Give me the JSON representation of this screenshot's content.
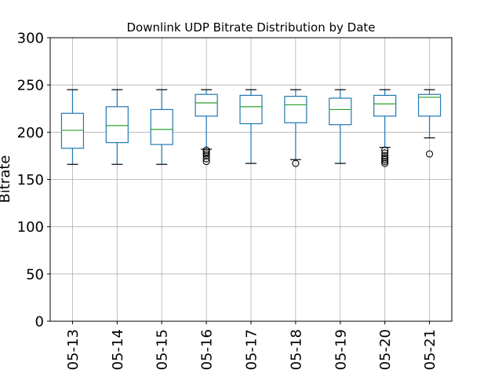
{
  "chart_data": {
    "type": "box",
    "title": "Downlink UDP Bitrate Distribution by Date",
    "xlabel": "",
    "ylabel": "Bitrate",
    "ylim": [
      0,
      300
    ],
    "yticks": [
      0,
      50,
      100,
      150,
      200,
      250,
      300
    ],
    "grid": true,
    "categories": [
      "05-13",
      "05-14",
      "05-15",
      "05-16",
      "05-17",
      "05-18",
      "05-19",
      "05-20",
      "05-21"
    ],
    "boxes": [
      {
        "min": 166,
        "q1": 183,
        "median": 202,
        "q3": 220,
        "max": 245,
        "outliers": []
      },
      {
        "min": 166,
        "q1": 189,
        "median": 207,
        "q3": 227,
        "max": 245,
        "outliers": []
      },
      {
        "min": 166,
        "q1": 187,
        "median": 203,
        "q3": 224,
        "max": 245,
        "outliers": []
      },
      {
        "min": 182,
        "q1": 217,
        "median": 231,
        "q3": 240,
        "max": 245,
        "outliers": [
          181,
          179,
          177,
          175,
          172,
          169
        ]
      },
      {
        "min": 167,
        "q1": 209,
        "median": 227,
        "q3": 239,
        "max": 245,
        "outliers": []
      },
      {
        "min": 171,
        "q1": 210,
        "median": 229,
        "q3": 238,
        "max": 245,
        "outliers": [
          167
        ]
      },
      {
        "min": 167,
        "q1": 208,
        "median": 224,
        "q3": 236,
        "max": 245,
        "outliers": []
      },
      {
        "min": 184,
        "q1": 217,
        "median": 230,
        "q3": 239,
        "max": 245,
        "outliers": [
          181,
          178,
          175,
          173,
          171,
          169,
          167
        ]
      },
      {
        "min": 194,
        "q1": 217,
        "median": 237,
        "q3": 240,
        "max": 245,
        "outliers": [
          177
        ]
      }
    ],
    "colors": {
      "box": "#1f77b4",
      "median": "#2ca02c",
      "grid": "#b0b0b0",
      "outlier": "#000000"
    }
  }
}
